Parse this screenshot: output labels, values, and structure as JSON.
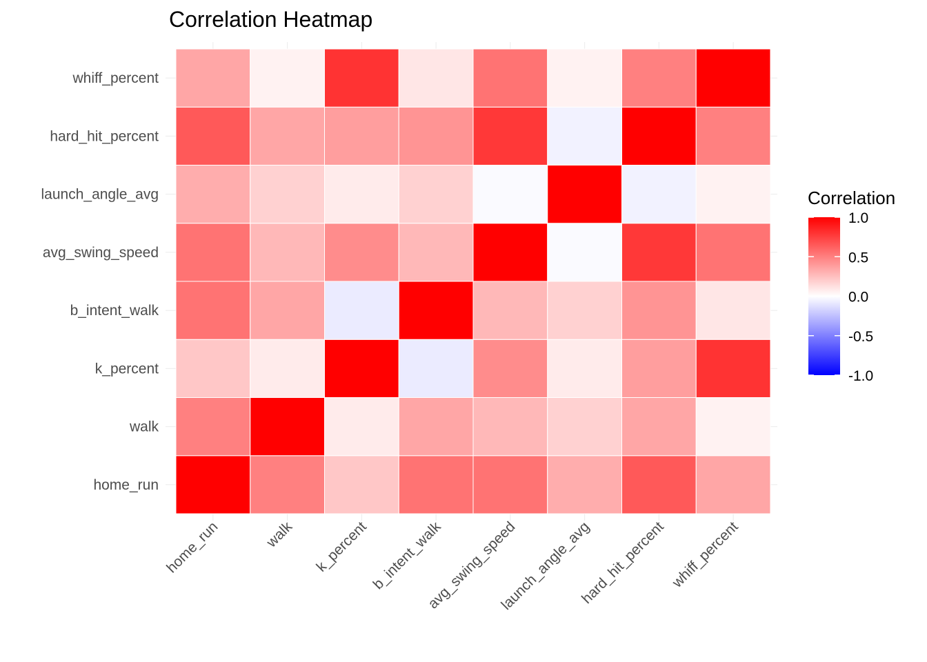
{
  "chart_data": {
    "type": "heatmap",
    "title": "Correlation Heatmap",
    "xlabel": "",
    "ylabel": "",
    "variables": [
      "home_run",
      "walk",
      "k_percent",
      "b_intent_walk",
      "avg_swing_speed",
      "launch_angle_avg",
      "hard_hit_percent",
      "whiff_percent"
    ],
    "matrix": [
      [
        1.0,
        0.5,
        0.22,
        0.55,
        0.55,
        0.32,
        0.65,
        0.35
      ],
      [
        0.5,
        1.0,
        0.08,
        0.35,
        0.28,
        0.18,
        0.35,
        0.05
      ],
      [
        0.22,
        0.08,
        1.0,
        -0.08,
        0.45,
        0.08,
        0.38,
        0.8
      ],
      [
        0.55,
        0.35,
        -0.08,
        1.0,
        0.28,
        0.18,
        0.42,
        0.1
      ],
      [
        0.55,
        0.28,
        0.45,
        0.28,
        1.0,
        -0.02,
        0.78,
        0.55
      ],
      [
        0.32,
        0.18,
        0.08,
        0.18,
        -0.02,
        1.0,
        -0.05,
        0.05
      ],
      [
        0.65,
        0.35,
        0.38,
        0.42,
        0.78,
        -0.05,
        1.0,
        0.5
      ],
      [
        0.35,
        0.05,
        0.8,
        0.1,
        0.55,
        0.05,
        0.5,
        1.0
      ]
    ],
    "color_scale": {
      "low": "#0000ff",
      "mid": "#ffffff",
      "high": "#ff0000",
      "limits": [
        -1,
        1
      ]
    },
    "legend": {
      "title": "Correlation",
      "position": "right",
      "ticks": [
        1.0,
        0.5,
        0.0,
        -0.5,
        -1.0
      ],
      "tick_labels": [
        "1.0",
        "0.5",
        "0.0",
        "-0.5",
        "-1.0"
      ]
    },
    "grid": true
  }
}
